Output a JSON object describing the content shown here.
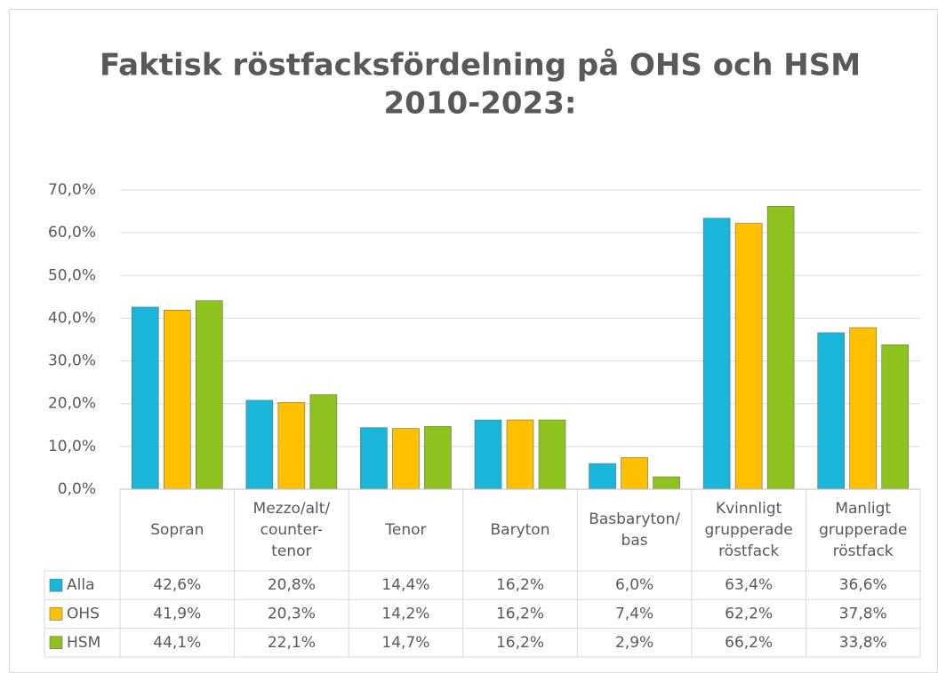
{
  "chart_data": {
    "type": "bar",
    "title": "Faktisk röstfacksfördelning på OHS och HSM",
    "subtitle": "2010-2023:",
    "categories": [
      [
        "Sopran"
      ],
      [
        "Mezzo/alt/",
        "counter-",
        "tenor"
      ],
      [
        "Tenor"
      ],
      [
        "Baryton"
      ],
      [
        "Basbaryton/",
        "bas"
      ],
      [
        "Kvinnligt",
        "grupperade",
        "röstfack"
      ],
      [
        "Manligt",
        "grupperade",
        "röstfack"
      ]
    ],
    "series": [
      {
        "name": "Alla",
        "color": "#1ab6d9",
        "values": [
          42.6,
          20.8,
          14.4,
          16.2,
          6.0,
          63.4,
          36.6
        ],
        "value_labels": [
          "42,6%",
          "20,8%",
          "14,4%",
          "16,2%",
          "6,0%",
          "63,4%",
          "36,6%"
        ]
      },
      {
        "name": "OHS",
        "color": "#ffc000",
        "values": [
          41.9,
          20.3,
          14.2,
          16.2,
          7.4,
          62.2,
          37.8
        ],
        "value_labels": [
          "41,9%",
          "20,3%",
          "14,2%",
          "16,2%",
          "7,4%",
          "62,2%",
          "37,8%"
        ]
      },
      {
        "name": "HSM",
        "color": "#8dc21f",
        "values": [
          44.1,
          22.1,
          14.7,
          16.2,
          2.9,
          66.2,
          33.8
        ],
        "value_labels": [
          "44,1%",
          "22,1%",
          "14,7%",
          "16,2%",
          "2,9%",
          "66,2%",
          "33,8%"
        ]
      }
    ],
    "ylim": [
      0,
      70
    ],
    "yticks": [
      {
        "value": 0,
        "label": "0,0%"
      },
      {
        "value": 10,
        "label": "10,0%"
      },
      {
        "value": 20,
        "label": "20,0%"
      },
      {
        "value": 30,
        "label": "30,0%"
      },
      {
        "value": 40,
        "label": "40,0%"
      },
      {
        "value": 50,
        "label": "50,0%"
      },
      {
        "value": 60,
        "label": "60,0%"
      },
      {
        "value": 70,
        "label": "70,0%"
      }
    ],
    "grid": true
  }
}
